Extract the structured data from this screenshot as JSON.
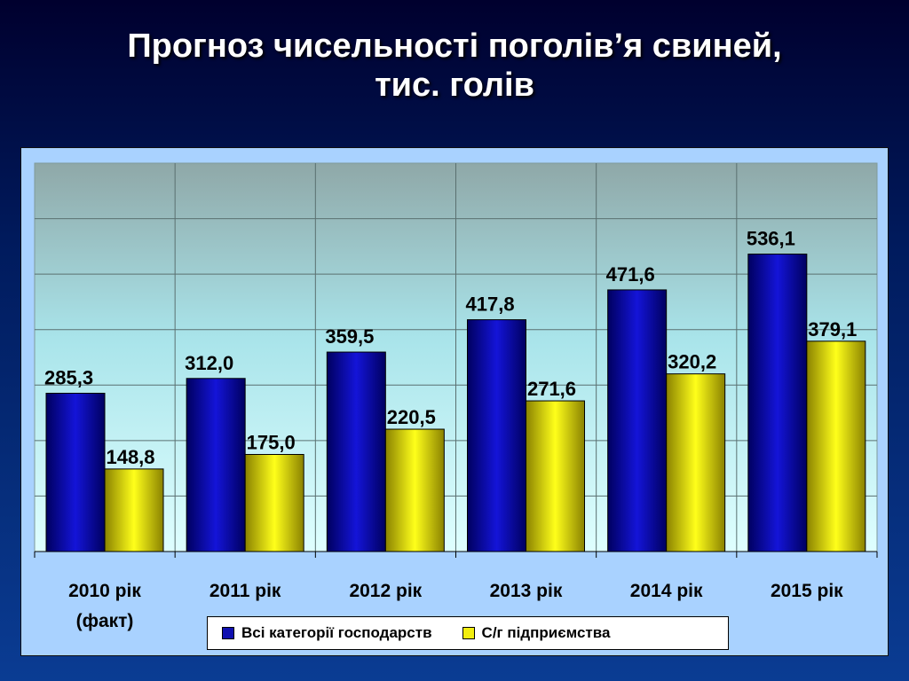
{
  "title": {
    "line1": "Прогноз чисельності поголів’я свиней,",
    "line2": "тис. голів"
  },
  "colors": {
    "series_all": "#1010b0",
    "series_agri": "#f2ee10"
  },
  "legend": {
    "all_label": "Всі категорії господарств",
    "agri_label": "С/г підприємства"
  },
  "chart_data": {
    "type": "bar",
    "categories": [
      [
        "2010 рік",
        "(факт)"
      ],
      [
        "2011 рік"
      ],
      [
        "2012 рік"
      ],
      [
        "2013 рік"
      ],
      [
        "2014 рік"
      ],
      [
        "2015 рік"
      ]
    ],
    "series": [
      {
        "name": "Всі категорії господарств",
        "values": [
          285.3,
          312.0,
          359.5,
          417.8,
          471.6,
          536.1
        ],
        "labels": [
          "285,3",
          "312,0",
          "359,5",
          "417,8",
          "471,6",
          "536,1"
        ]
      },
      {
        "name": "С/г підприємства",
        "values": [
          148.8,
          175.0,
          220.5,
          271.6,
          320.2,
          379.1
        ],
        "labels": [
          "148,8",
          "175,0",
          "220,5",
          "271,6",
          "320,2",
          "379,1"
        ]
      }
    ],
    "ylim": [
      0,
      700
    ],
    "grid": true,
    "legend_position": "bottom"
  }
}
